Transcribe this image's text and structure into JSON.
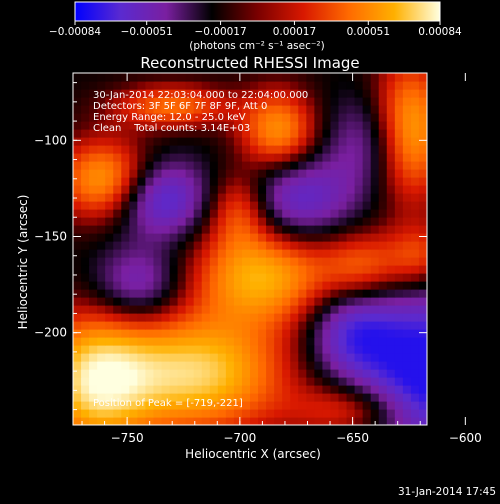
{
  "colorbar": {
    "tick_labels": [
      "-0.00084",
      "-0.00051",
      "-0.00017",
      "0.00017",
      "0.00051",
      "0.00084"
    ],
    "unit_label": "(photons cm⁻² s⁻¹ asec⁻²)",
    "range": [
      -0.00084,
      0.00084
    ],
    "colormap_stops": [
      "#0000ff",
      "#5a2ad0",
      "#7a1fa0",
      "#000000",
      "#7a0000",
      "#d81800",
      "#ff6a00",
      "#ffb000",
      "#ffffe0"
    ]
  },
  "chart_data": {
    "type": "heatmap",
    "title": "Reconstructed RHESSI Image",
    "xlabel": "Heliocentric X (arcsec)",
    "ylabel": "Heliocentric Y (arcsec)",
    "xlim": [
      -774,
      -617
    ],
    "ylim": [
      -248,
      -65
    ],
    "x_ticks": [
      -750,
      -700,
      -650,
      -600
    ],
    "y_ticks": [
      -100,
      -150,
      -200
    ],
    "x_tick_labels": [
      "−750",
      "−700",
      "−650",
      "−600"
    ],
    "y_tick_labels": [
      "−100",
      "−150",
      "−200"
    ],
    "annotations": [
      "30-Jan-2014 22:03:04.000 to 22:04:00.000",
      "Detectors: 3F 5F 6F 7F 8F 9F, Att 0",
      "Energy Range: 12.0 - 25.0 keV",
      "Clean    Total counts: 3.14E+03"
    ],
    "peak_label": "Position of Peak = [-719,-221]",
    "peak": [
      -719,
      -221
    ],
    "blobs": [
      {
        "x": -719,
        "y": -221,
        "amp": 1.0,
        "sx": 28,
        "sy": 22
      },
      {
        "x": -765,
        "y": -225,
        "amp": 0.95,
        "sx": 18,
        "sy": 25
      },
      {
        "x": -690,
        "y": -170,
        "amp": 0.85,
        "sx": 22,
        "sy": 18
      },
      {
        "x": -760,
        "y": -120,
        "amp": 0.8,
        "sx": 15,
        "sy": 15
      },
      {
        "x": -700,
        "y": -135,
        "amp": 0.55,
        "sx": 10,
        "sy": 14
      },
      {
        "x": -683,
        "y": -95,
        "amp": 0.75,
        "sx": 12,
        "sy": 15
      },
      {
        "x": -730,
        "y": -82,
        "amp": 0.6,
        "sx": 18,
        "sy": 8
      },
      {
        "x": -625,
        "y": -95,
        "amp": 0.95,
        "sx": 12,
        "sy": 25
      },
      {
        "x": -645,
        "y": -165,
        "amp": 0.5,
        "sx": 13,
        "sy": 13
      },
      {
        "x": -620,
        "y": -160,
        "amp": 0.45,
        "sx": 10,
        "sy": 12
      },
      {
        "x": -650,
        "y": -240,
        "amp": 0.45,
        "sx": 18,
        "sy": 10
      },
      {
        "x": -735,
        "y": -130,
        "amp": -0.7,
        "sx": 14,
        "sy": 14
      },
      {
        "x": -675,
        "y": -130,
        "amp": -0.6,
        "sx": 18,
        "sy": 16
      },
      {
        "x": -615,
        "y": -220,
        "amp": -0.95,
        "sx": 22,
        "sy": 28
      },
      {
        "x": -650,
        "y": -200,
        "amp": -0.6,
        "sx": 14,
        "sy": 16
      },
      {
        "x": -745,
        "y": -175,
        "amp": -0.5,
        "sx": 14,
        "sy": 14
      },
      {
        "x": -640,
        "y": -100,
        "amp": -0.45,
        "sx": 14,
        "sy": 18
      }
    ]
  },
  "footer": {
    "timestamp": "31-Jan-2014 17:45"
  }
}
